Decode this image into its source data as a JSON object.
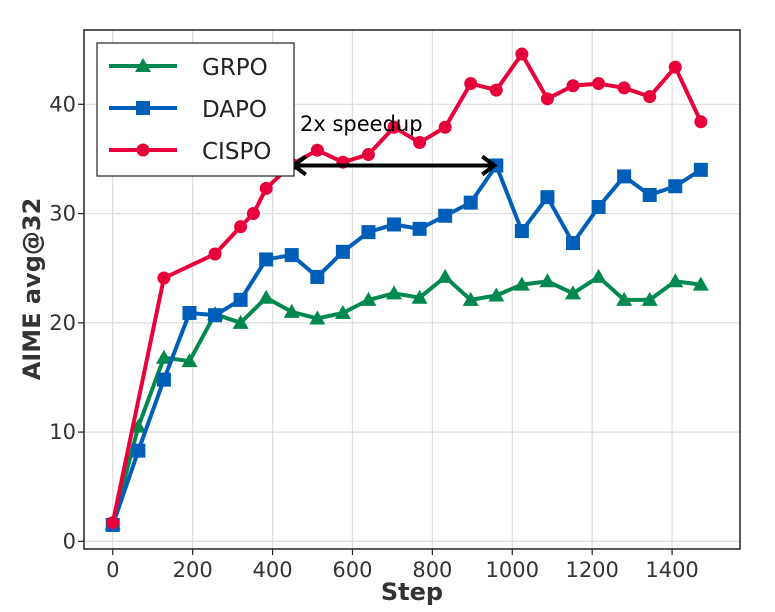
{
  "chart_data": {
    "type": "line",
    "title": "",
    "xlabel": "Step",
    "ylabel": "AIME avg@32",
    "xlim": [
      -72,
      1570
    ],
    "ylim": [
      -0.7,
      46.8
    ],
    "xticks": [
      0,
      200,
      400,
      600,
      800,
      1000,
      1200,
      1400
    ],
    "yticks": [
      0,
      10,
      20,
      30,
      40
    ],
    "grid": true,
    "legend_position": "top-left",
    "series": [
      {
        "name": "GRPO",
        "color": "#00884f",
        "marker": "triangle",
        "x": [
          0,
          64,
          128,
          192,
          256,
          320,
          384,
          448,
          512,
          576,
          640,
          704,
          768,
          832,
          896,
          960,
          1024,
          1088,
          1152,
          1216,
          1280,
          1344,
          1408,
          1472
        ],
        "y": [
          1.6,
          10.5,
          16.8,
          16.5,
          20.8,
          20.0,
          22.3,
          21.0,
          20.4,
          20.9,
          22.1,
          22.7,
          22.3,
          24.2,
          22.1,
          22.5,
          23.5,
          23.8,
          22.7,
          24.2,
          22.1,
          22.1,
          23.8,
          23.5
        ]
      },
      {
        "name": "DAPO",
        "color": "#005eb8",
        "marker": "square",
        "x": [
          0,
          64,
          128,
          192,
          256,
          320,
          384,
          448,
          512,
          576,
          640,
          704,
          768,
          832,
          896,
          960,
          1024,
          1088,
          1152,
          1216,
          1280,
          1344,
          1408,
          1472
        ],
        "y": [
          1.5,
          8.3,
          14.8,
          20.9,
          20.7,
          22.1,
          25.8,
          26.2,
          24.2,
          26.5,
          28.3,
          29.0,
          28.6,
          29.8,
          31.0,
          34.4,
          28.4,
          31.5,
          27.3,
          30.6,
          33.4,
          31.7,
          32.5,
          34.0
        ]
      },
      {
        "name": "CISPO",
        "color": "#e8003a",
        "marker": "circle",
        "x": [
          0,
          128,
          256,
          320,
          352,
          384,
          448,
          512,
          576,
          640,
          704,
          768,
          832,
          896,
          960,
          1024,
          1088,
          1152,
          1216,
          1280,
          1344,
          1408,
          1472
        ],
        "y": [
          1.7,
          24.1,
          26.3,
          28.8,
          30.0,
          32.3,
          34.5,
          35.8,
          34.7,
          35.4,
          37.9,
          36.5,
          37.9,
          41.9,
          41.3,
          44.6,
          40.5,
          41.7,
          41.9,
          41.5,
          40.7,
          43.4,
          38.4
        ]
      }
    ],
    "annotations": [
      {
        "text": "2x speedup",
        "arrow_from": [
          448,
          34.4
        ],
        "arrow_to": [
          960,
          34.4
        ]
      }
    ]
  }
}
